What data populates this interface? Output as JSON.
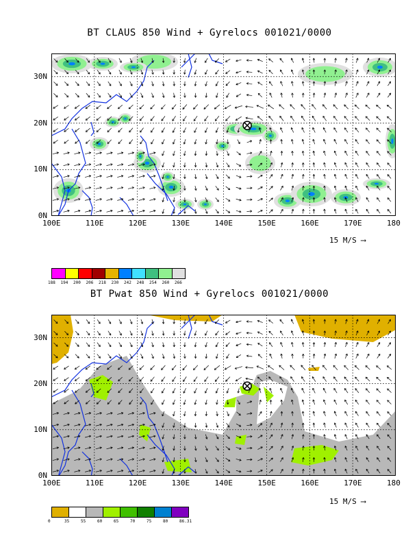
{
  "panels": [
    {
      "title": "BT CLAUS 850 Wind + Gyrelocs 001021/0000",
      "x_ticks": [
        "100E",
        "110E",
        "120E",
        "130E",
        "140E",
        "150E",
        "160E",
        "170E",
        "180"
      ],
      "y_ticks": [
        "0N",
        "10N",
        "20N",
        "30N"
      ],
      "vector_scale": "15 M/S",
      "colorbar": {
        "labels": [
          "188",
          "194",
          "200",
          "206",
          "218",
          "230",
          "242",
          "248",
          "254",
          "260",
          "266"
        ],
        "colors": [
          "#ff00ff",
          "#ffff00",
          "#ff0000",
          "#a00000",
          "#e6b400",
          "#0080ff",
          "#40e0ff",
          "#40c080",
          "#90f090",
          "#e0e0e0"
        ]
      }
    },
    {
      "title": "BT Pwat 850 Wind + Gyrelocs 001021/0000",
      "x_ticks": [
        "100E",
        "110E",
        "120E",
        "130E",
        "140E",
        "150E",
        "160E",
        "170E",
        "180"
      ],
      "y_ticks": [
        "0N",
        "10N",
        "20N",
        "30N"
      ],
      "vector_scale": "15 M/S",
      "colorbar": {
        "labels": [
          "0",
          "35",
          "55",
          "60",
          "65",
          "70",
          "75",
          "80",
          "86.31"
        ],
        "colors": [
          "#e0b000",
          "#ffffff",
          "#b8b8b8",
          "#a0f000",
          "#40c000",
          "#108000",
          "#0080d0",
          "#8000c0"
        ]
      }
    }
  ],
  "gyre_location": {
    "lon": 145.5,
    "lat": 19.5
  },
  "map_extent": {
    "lon": [
      100,
      180
    ],
    "lat": [
      0,
      35
    ]
  }
}
